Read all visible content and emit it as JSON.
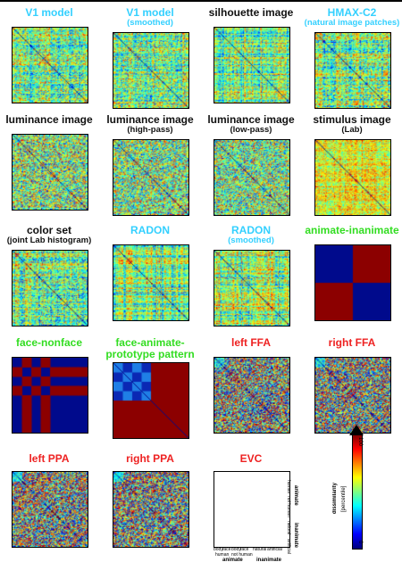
{
  "panels": [
    {
      "title": "V1 model",
      "subtitle": "",
      "color": "#33d0ff",
      "pattern": "noise-structured"
    },
    {
      "title": "V1 model",
      "subtitle": "(smoothed)",
      "color": "#33d0ff",
      "pattern": "noise-structured"
    },
    {
      "title": "silhouette image",
      "subtitle": "",
      "color": "#111111",
      "pattern": "noise-blocky"
    },
    {
      "title": "HMAX-C2",
      "subtitle": "(natural image patches)",
      "color": "#33d0ff",
      "pattern": "noise-structured"
    },
    {
      "title": "luminance image",
      "subtitle": "",
      "color": "#111111",
      "pattern": "noise-mixed"
    },
    {
      "title": "luminance image",
      "subtitle": "(high-pass)",
      "color": "#111111",
      "pattern": "noise-mixed"
    },
    {
      "title": "luminance image",
      "subtitle": "(low-pass)",
      "color": "#111111",
      "pattern": "noise-mixed"
    },
    {
      "title": "stimulus image",
      "subtitle": "(Lab)",
      "color": "#111111",
      "pattern": "noise-warm"
    },
    {
      "title": "color set",
      "subtitle": "(joint Lab histogram)",
      "color": "#111111",
      "pattern": "noise-structured"
    },
    {
      "title": "RADON",
      "subtitle": "",
      "color": "#33d0ff",
      "pattern": "noise-blocky"
    },
    {
      "title": "RADON",
      "subtitle": "(smoothed)",
      "color": "#33d0ff",
      "pattern": "noise-blocky"
    },
    {
      "title": "animate-inanimate",
      "subtitle": "",
      "color": "#33dd22",
      "pattern": "animate-inanimate"
    },
    {
      "title": "face-nonface",
      "subtitle": "",
      "color": "#33dd22",
      "pattern": "face-nonface"
    },
    {
      "title": "face-animate-",
      "subtitle": "prototype pattern",
      "color": "#33dd22",
      "pattern": "prototype"
    },
    {
      "title": "left FFA",
      "subtitle": "",
      "color": "#ee2222",
      "pattern": "noise-brain"
    },
    {
      "title": "right FFA",
      "subtitle": "",
      "color": "#ee2222",
      "pattern": "noise-brain"
    },
    {
      "title": "left PPA",
      "subtitle": "",
      "color": "#ee2222",
      "pattern": "noise-brain"
    },
    {
      "title": "right PPA",
      "subtitle": "",
      "color": "#ee2222",
      "pattern": "noise-brain"
    },
    {
      "title": "EVC",
      "subtitle": "",
      "color": "#ee2222",
      "pattern": "noise-brain"
    }
  ],
  "evc_labels": {
    "bottom": [
      "body",
      "face",
      "body",
      "face",
      "natural",
      "artificial"
    ],
    "bottom_sub": [
      "human",
      "not human"
    ],
    "bottom_groups": [
      "animate",
      "inanimate"
    ],
    "right": [
      "human",
      "not human",
      "natural",
      "artificial"
    ],
    "right_groups": [
      "animate",
      "inanimate"
    ]
  },
  "colorbar": {
    "top_label": "100",
    "bottom_label": "0",
    "title": "dissimilarity",
    "unit": "[percentile]"
  }
}
